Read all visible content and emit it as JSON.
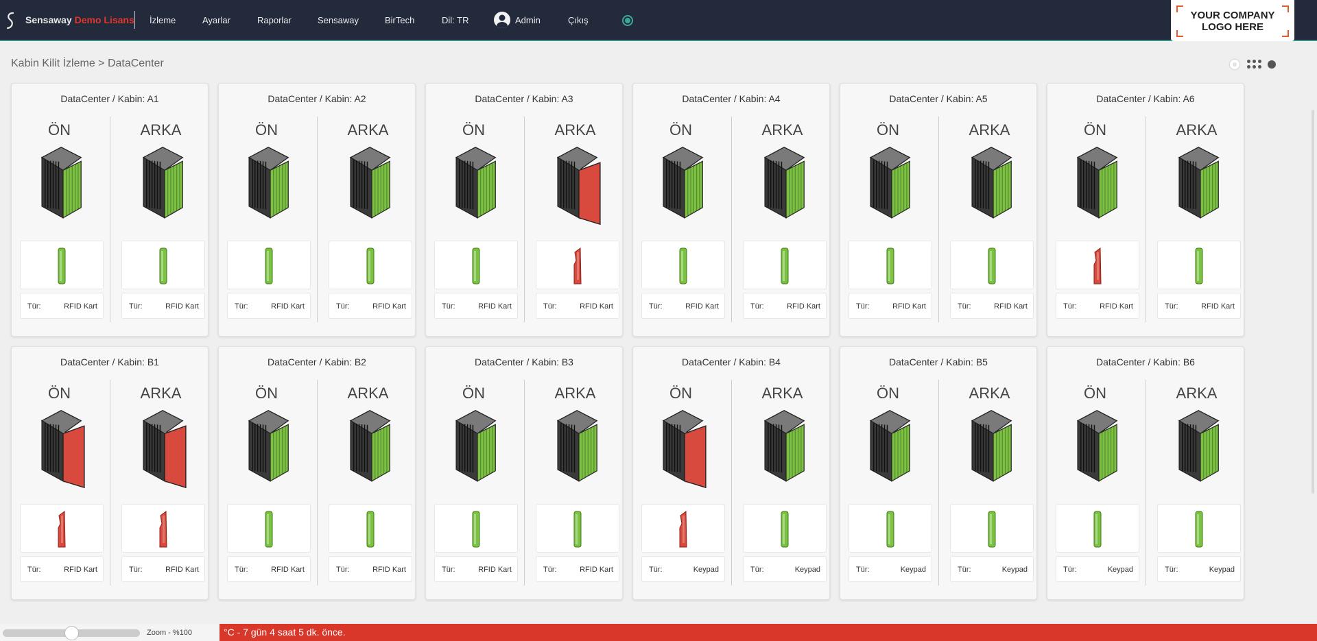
{
  "header": {
    "brand_name": "Sensaway",
    "brand_suffix": "Demo Lisans",
    "nav": [
      {
        "label": "İzleme",
        "name": "nav-izleme"
      },
      {
        "label": "Ayarlar",
        "name": "nav-ayarlar"
      },
      {
        "label": "Raporlar",
        "name": "nav-raporlar"
      },
      {
        "label": "Sensaway",
        "name": "nav-sensaway"
      },
      {
        "label": "BirTech",
        "name": "nav-birtech"
      },
      {
        "label": "Dil: TR",
        "name": "nav-language"
      }
    ],
    "user_label": "Admin",
    "logout_label": "Çıkış",
    "company_logo_line1": "YOUR COMPANY",
    "company_logo_line2": "LOGO HERE",
    "colors": {
      "bar": "#232a3b",
      "accent": "#3aa89a",
      "brand_red": "#e0362c"
    }
  },
  "breadcrumb": "Kabin Kilit İzleme > DataCenter",
  "labels": {
    "front": "ÖN",
    "back": "ARKA",
    "type_key": "Tür:"
  },
  "status_colors": {
    "closed": "#7cc242",
    "open": "#d94a3e"
  },
  "cabinets": [
    {
      "title": "DataCenter / Kabin: A1",
      "front": {
        "door": "closed",
        "lock": "locked",
        "type": "RFID Kart"
      },
      "back": {
        "door": "closed",
        "lock": "locked",
        "type": "RFID Kart"
      }
    },
    {
      "title": "DataCenter / Kabin: A2",
      "front": {
        "door": "closed",
        "lock": "locked",
        "type": "RFID Kart"
      },
      "back": {
        "door": "closed",
        "lock": "locked",
        "type": "RFID Kart"
      }
    },
    {
      "title": "DataCenter / Kabin: A3",
      "front": {
        "door": "closed",
        "lock": "locked",
        "type": "RFID Kart"
      },
      "back": {
        "door": "open",
        "lock": "unlocked",
        "type": "RFID Kart"
      }
    },
    {
      "title": "DataCenter / Kabin: A4",
      "front": {
        "door": "closed",
        "lock": "locked",
        "type": "RFID Kart"
      },
      "back": {
        "door": "closed",
        "lock": "locked",
        "type": "RFID Kart"
      }
    },
    {
      "title": "DataCenter / Kabin: A5",
      "front": {
        "door": "closed",
        "lock": "locked",
        "type": "RFID Kart"
      },
      "back": {
        "door": "closed",
        "lock": "locked",
        "type": "RFID Kart"
      }
    },
    {
      "title": "DataCenter / Kabin: A6",
      "front": {
        "door": "closed",
        "lock": "unlocked",
        "type": "RFID Kart"
      },
      "back": {
        "door": "closed",
        "lock": "locked",
        "type": "RFID Kart"
      }
    },
    {
      "title": "DataCenter / Kabin: B1",
      "front": {
        "door": "open",
        "lock": "unlocked",
        "type": "RFID Kart"
      },
      "back": {
        "door": "open",
        "lock": "unlocked",
        "type": "RFID Kart"
      }
    },
    {
      "title": "DataCenter / Kabin: B2",
      "front": {
        "door": "closed",
        "lock": "locked",
        "type": "RFID Kart"
      },
      "back": {
        "door": "closed",
        "lock": "locked",
        "type": "RFID Kart"
      }
    },
    {
      "title": "DataCenter / Kabin: B3",
      "front": {
        "door": "closed",
        "lock": "locked",
        "type": "RFID Kart"
      },
      "back": {
        "door": "closed",
        "lock": "locked",
        "type": "RFID Kart"
      }
    },
    {
      "title": "DataCenter / Kabin: B4",
      "front": {
        "door": "open",
        "lock": "unlocked",
        "type": "Keypad"
      },
      "back": {
        "door": "closed",
        "lock": "locked",
        "type": "Keypad"
      }
    },
    {
      "title": "DataCenter / Kabin: B5",
      "front": {
        "door": "closed",
        "lock": "locked",
        "type": "Keypad"
      },
      "back": {
        "door": "closed",
        "lock": "locked",
        "type": "Keypad"
      }
    },
    {
      "title": "DataCenter / Kabin: B6",
      "front": {
        "door": "closed",
        "lock": "locked",
        "type": "Keypad"
      },
      "back": {
        "door": "closed",
        "lock": "locked",
        "type": "Keypad"
      }
    }
  ],
  "footer": {
    "zoom_label": "Zoom - %100",
    "zoom_level": 0.5,
    "ticker_text": "°C - 7 gün 4 saat 5 dk. önce."
  }
}
